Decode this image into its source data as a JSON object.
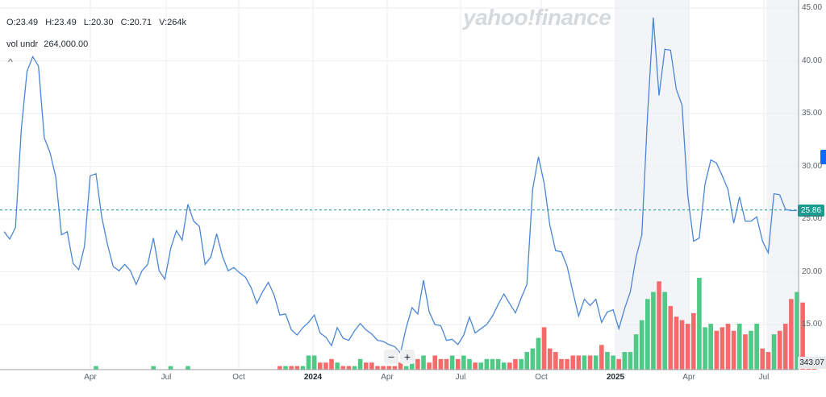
{
  "ohlc": {
    "open": "O:23.49",
    "high": "H:23.49",
    "low": "L:20.30",
    "close": "C:20.71",
    "volume": "V:264k"
  },
  "volume_indicator": {
    "label": "vol undr",
    "value": "264,000.00"
  },
  "watermark": "yahoo!finance",
  "controls": {
    "zoom_out": "−",
    "zoom_in": "+",
    "collapse": "^"
  },
  "current_price_tag": "25.86",
  "volume_tag": "343.07",
  "colors": {
    "line": "#4a86d6",
    "up": "#4fc985",
    "down": "#f56b6b",
    "price_tag": "#1a9c91",
    "shade": "#f2f4f7",
    "grid": "#eceef0"
  },
  "chart_data": {
    "type": "line",
    "yaxis_ticks": [
      "45.00",
      "40.00",
      "35.00",
      "30.00",
      "25.00",
      "20.00",
      "15.00"
    ],
    "ylim": [
      12,
      45
    ],
    "xaxis_ticks": [
      "Apr",
      "Jul",
      "Oct",
      "2024",
      "Apr",
      "Jul",
      "Oct",
      "2025",
      "Apr",
      "Jul"
    ],
    "price_line_value": 25.86,
    "shaded_ranges": [
      [
        0.745,
        0.835
      ],
      [
        0.928,
        0.966
      ]
    ],
    "price": [
      23.8,
      23.1,
      24.2,
      33.5,
      39.0,
      40.4,
      39.5,
      32.7,
      31.3,
      29.0,
      23.5,
      23.8,
      20.8,
      20.2,
      22.4,
      29.1,
      29.3,
      25.2,
      22.6,
      20.5,
      20.1,
      20.7,
      20.1,
      18.8,
      20.1,
      20.7,
      23.2,
      20.1,
      19.3,
      22.2,
      23.9,
      23.0,
      26.4,
      24.8,
      24.3,
      20.7,
      21.4,
      23.6,
      21.5,
      20.1,
      20.4,
      19.9,
      19.5,
      18.5,
      17.0,
      18.1,
      19.0,
      17.8,
      15.9,
      16.0,
      14.5,
      14.0,
      14.7,
      15.2,
      15.9,
      14.2,
      13.8,
      13.0,
      14.7,
      13.7,
      13.5,
      14.4,
      15.1,
      14.5,
      14.1,
      13.5,
      13.4,
      13.1,
      12.9,
      12.3,
      14.7,
      16.6,
      16.0,
      19.2,
      16.2,
      15.0,
      14.9,
      13.5,
      13.6,
      13.1,
      14.0,
      15.7,
      14.2,
      14.6,
      15.0,
      15.8,
      16.9,
      17.9,
      17.0,
      16.1,
      17.5,
      18.8,
      27.8,
      30.9,
      28.4,
      24.4,
      22.0,
      21.9,
      20.5,
      18.1,
      15.8,
      17.4,
      16.8,
      17.4,
      15.2,
      16.2,
      16.4,
      14.6,
      16.5,
      18.1,
      21.4,
      23.5,
      34.9,
      44.1,
      36.7,
      41.1,
      41.0,
      37.3,
      35.8,
      27.2,
      22.9,
      23.2,
      28.3,
      30.6,
      30.3,
      29.1,
      27.8,
      24.6,
      27.1,
      24.8,
      24.8,
      25.2,
      22.9,
      21.8,
      27.4,
      27.3,
      25.9,
      25.8,
      25.8
    ],
    "volume": [
      0,
      0,
      0,
      0,
      0,
      0,
      0,
      0,
      0,
      0,
      0,
      0,
      0,
      0,
      0,
      0,
      1,
      0,
      0,
      0,
      0,
      0,
      0,
      0,
      0,
      0,
      1,
      0,
      0,
      1,
      0,
      0,
      1,
      0,
      0,
      0,
      0,
      0,
      0,
      0,
      0,
      0,
      0,
      0,
      0,
      0,
      0,
      0,
      1,
      1,
      1,
      1,
      1,
      4,
      4,
      2,
      2,
      3,
      2,
      1,
      1,
      1,
      3,
      2,
      2,
      1,
      1,
      1,
      1,
      2,
      1,
      3,
      3,
      4,
      2,
      4,
      3,
      3,
      4,
      3,
      4,
      3,
      2,
      2,
      3,
      3,
      3,
      2,
      2,
      3,
      3,
      5,
      6,
      9,
      12,
      6,
      5,
      3,
      3,
      4,
      4,
      4,
      4,
      4,
      7,
      5,
      4,
      3,
      5,
      5,
      10,
      14,
      20,
      22,
      25,
      22,
      18,
      15,
      14,
      13,
      16,
      26,
      12,
      13,
      11,
      12,
      13,
      11,
      13,
      10,
      11,
      13,
      6,
      5,
      10,
      11,
      13,
      20,
      22,
      19,
      2,
      1
    ]
  }
}
